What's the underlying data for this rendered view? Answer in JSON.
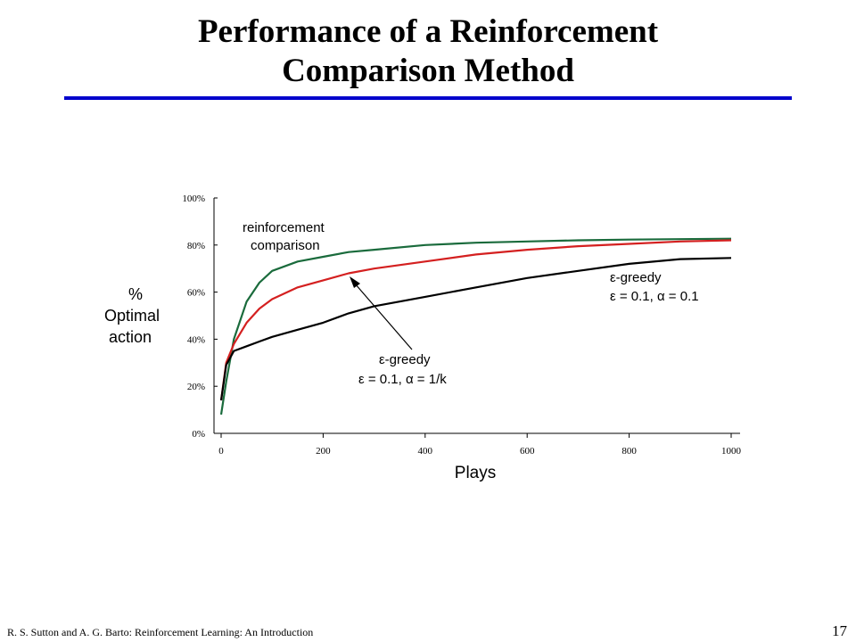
{
  "slide": {
    "title_line1": "Performance of a Reinforcement",
    "title_line2": "Comparison Method",
    "footer_citation": "R. S. Sutton and A. G. Barto: Reinforcement Learning: An Introduction",
    "page_number": "17",
    "rule_color": "#0000cc"
  },
  "chart_data": {
    "type": "line",
    "xlabel": "Plays",
    "ylabel_lines": [
      "%",
      "Optimal",
      "action"
    ],
    "xlim": [
      0,
      1000
    ],
    "ylim": [
      0,
      100
    ],
    "x_ticks": [
      "0",
      "200",
      "400",
      "600",
      "800",
      "1000"
    ],
    "y_ticks": [
      "0%",
      "20%",
      "40%",
      "60%",
      "80%",
      "100%"
    ],
    "grid": false,
    "x": [
      0,
      10,
      25,
      50,
      75,
      100,
      150,
      200,
      250,
      300,
      400,
      500,
      600,
      700,
      800,
      900,
      1000
    ],
    "series": [
      {
        "name": "reinforcement comparison",
        "color": "#1a6b3c",
        "values": [
          8,
          22,
          40,
          56,
          64,
          69,
          73,
          75,
          77,
          78,
          80,
          81,
          81.5,
          82,
          82.3,
          82.5,
          82.7
        ]
      },
      {
        "name": "ε-greedy ε = 0.1, α = 1/k",
        "color": "#d42020",
        "values": [
          14,
          30,
          38,
          47,
          53,
          57,
          62,
          65,
          68,
          70,
          73,
          76,
          78,
          79.5,
          80.5,
          81.5,
          82
        ]
      },
      {
        "name": "ε-greedy ε = 0.1, α = 0.1",
        "color": "#000000",
        "values": [
          14,
          29,
          35,
          37,
          39,
          41,
          44,
          47,
          51,
          54,
          58,
          62,
          66,
          69,
          72,
          74,
          74.5
        ]
      }
    ],
    "annotations": {
      "reinforcement_comparison_line1": "reinforcement",
      "reinforcement_comparison_line2": "comparison",
      "greedy_const_line1": "ε-greedy",
      "greedy_const_line2": "ε = 0.1,  α = 0.1",
      "greedy_avg_line1": "ε-greedy",
      "greedy_avg_line2": "ε = 0.1,  α = 1/k"
    }
  }
}
